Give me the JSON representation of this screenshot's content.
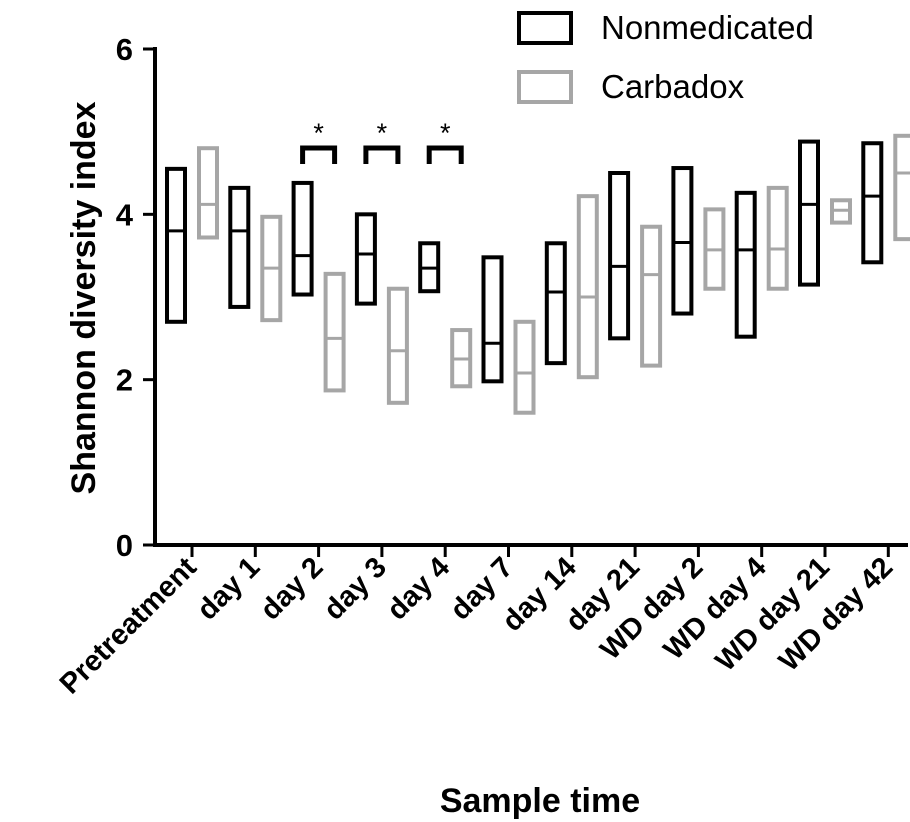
{
  "chart_data": {
    "type": "box",
    "title": "",
    "xlabel": "Sample time",
    "ylabel": "Shannon diversity index",
    "ylim": [
      0,
      6
    ],
    "yticks": [
      0,
      2,
      4,
      6
    ],
    "categories": [
      "Pretreatment",
      "day 1",
      "day 2",
      "day 3",
      "day 4",
      "day 7",
      "day 14",
      "day 21",
      "WD day 2",
      "WD day 4",
      "WD day 21",
      "WD day 42"
    ],
    "series": [
      {
        "name": "Nonmedicated",
        "color": "#000000",
        "boxes": [
          {
            "min": 2.7,
            "median": 3.8,
            "max": 4.55
          },
          {
            "min": 2.88,
            "median": 3.8,
            "max": 4.32
          },
          {
            "min": 3.03,
            "median": 3.5,
            "max": 4.38
          },
          {
            "min": 2.92,
            "median": 3.52,
            "max": 4.0
          },
          {
            "min": 3.07,
            "median": 3.35,
            "max": 3.65
          },
          {
            "min": 1.98,
            "median": 2.44,
            "max": 3.48
          },
          {
            "min": 2.2,
            "median": 3.06,
            "max": 3.65
          },
          {
            "min": 2.5,
            "median": 3.37,
            "max": 4.5
          },
          {
            "min": 2.8,
            "median": 3.66,
            "max": 4.56
          },
          {
            "min": 2.52,
            "median": 3.57,
            "max": 4.26
          },
          {
            "min": 3.15,
            "median": 4.12,
            "max": 4.88
          },
          {
            "min": 3.42,
            "median": 4.22,
            "max": 4.86
          }
        ]
      },
      {
        "name": "Carbadox",
        "color": "#a6a6a6",
        "boxes": [
          {
            "min": 3.72,
            "median": 4.12,
            "max": 4.8
          },
          {
            "min": 2.72,
            "median": 3.35,
            "max": 3.97
          },
          {
            "min": 1.87,
            "median": 2.5,
            "max": 3.28
          },
          {
            "min": 1.72,
            "median": 2.35,
            "max": 3.1
          },
          {
            "min": 1.92,
            "median": 2.25,
            "max": 2.6
          },
          {
            "min": 1.6,
            "median": 2.08,
            "max": 2.7
          },
          {
            "min": 2.03,
            "median": 3.0,
            "max": 4.22
          },
          {
            "min": 2.17,
            "median": 3.27,
            "max": 3.85
          },
          {
            "min": 3.1,
            "median": 3.57,
            "max": 4.06
          },
          {
            "min": 3.1,
            "median": 3.58,
            "max": 4.32
          },
          {
            "min": 3.9,
            "median": 4.05,
            "max": 4.17
          },
          {
            "min": 3.7,
            "median": 4.5,
            "max": 4.95
          }
        ]
      }
    ],
    "significance": [
      {
        "category": "day 2",
        "label": "*"
      },
      {
        "category": "day 3",
        "label": "*"
      },
      {
        "category": "day 4",
        "label": "*"
      }
    ],
    "legend": {
      "position": "top-right",
      "entries": [
        "Nonmedicated",
        "Carbadox"
      ]
    },
    "grid": false
  }
}
